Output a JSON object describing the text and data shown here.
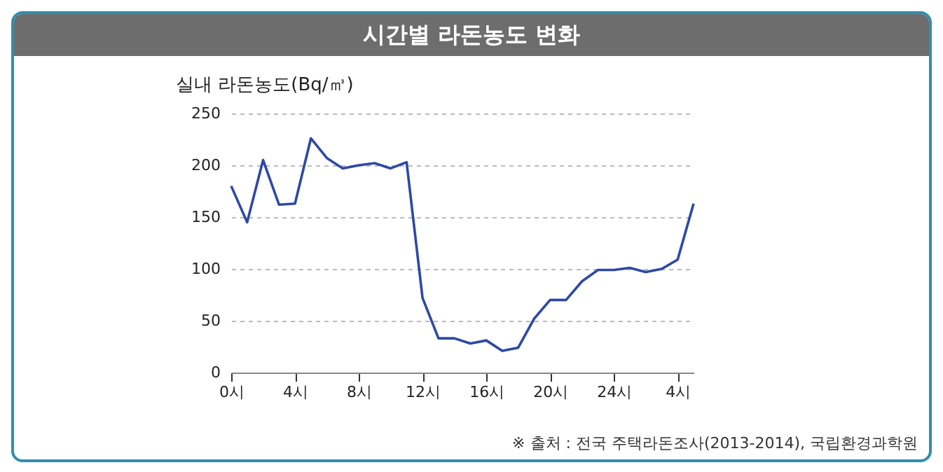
{
  "chart_data": {
    "type": "line",
    "title": "시간별 라돈농도 변화",
    "ylabel": "실내 라돈농도(Bq/㎥)",
    "categories": [
      "0시",
      null,
      null,
      null,
      "4시",
      null,
      null,
      null,
      "8시",
      null,
      null,
      null,
      "12시",
      null,
      null,
      null,
      "16시",
      null,
      null,
      null,
      "20시",
      null,
      null,
      null,
      "24시",
      null,
      null,
      null,
      "4시",
      null
    ],
    "series": [
      {
        "color": "#2e48a8",
        "values": [
          180,
          145,
          205,
          162,
          163,
          226,
          207,
          197,
          200,
          202,
          197,
          203,
          72,
          33,
          33,
          28,
          31,
          21,
          24,
          52,
          70,
          70,
          88,
          99,
          99,
          101,
          97,
          100,
          109,
          163
        ]
      }
    ],
    "ylim": [
      0,
      250
    ],
    "yticks": [
      0,
      50,
      100,
      150,
      200,
      250
    ],
    "grid": "y",
    "marker": "none",
    "line_style": "solid",
    "annotations": [
      "※ 출처 : 전국 주택라돈조사(2013-2014), 국립환경과학원"
    ]
  }
}
